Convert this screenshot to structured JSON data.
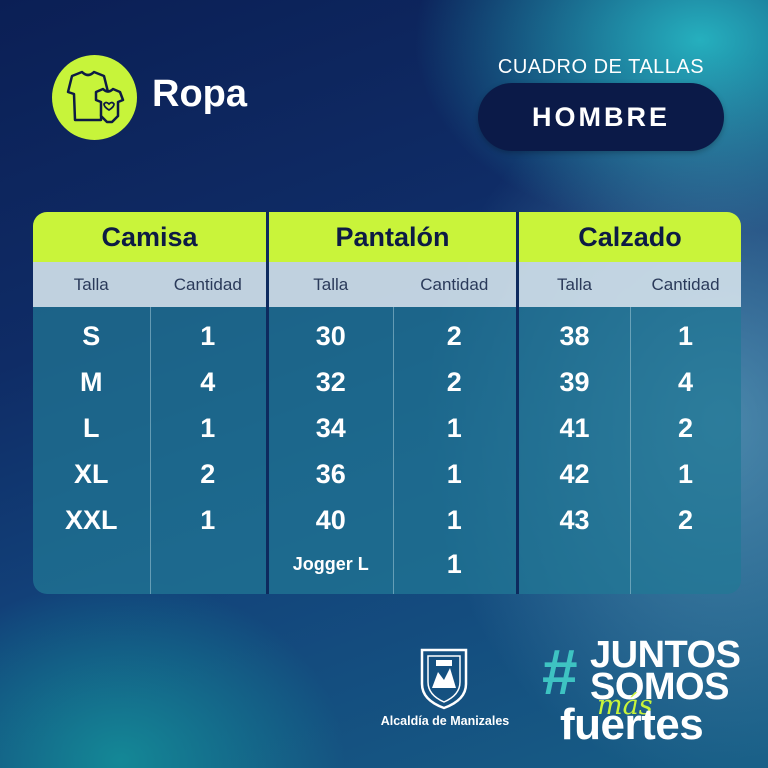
{
  "header": {
    "title": "Ropa",
    "subtitle": "CUADRO DE TALLAS",
    "gender": "HOMBRE"
  },
  "colors": {
    "accent": "#c9f43a",
    "dark_navy": "#0b1a48",
    "teal": "#3ec3c2"
  },
  "icons": [
    "clothing-icon",
    "city-crest-icon"
  ],
  "tables": [
    {
      "category": "Camisa",
      "col_size": "Talla",
      "col_qty": "Cantidad",
      "rows": [
        {
          "talla": "S",
          "cantidad": "1"
        },
        {
          "talla": "M",
          "cantidad": "4"
        },
        {
          "talla": "L",
          "cantidad": "1"
        },
        {
          "talla": "XL",
          "cantidad": "2"
        },
        {
          "talla": "XXL",
          "cantidad": "1"
        }
      ]
    },
    {
      "category": "Pantalón",
      "col_size": "Talla",
      "col_qty": "Cantidad",
      "rows": [
        {
          "talla": "30",
          "cantidad": "2"
        },
        {
          "talla": "32",
          "cantidad": "2"
        },
        {
          "talla": "34",
          "cantidad": "1"
        },
        {
          "talla": "36",
          "cantidad": "1"
        },
        {
          "talla": "40",
          "cantidad": "1"
        },
        {
          "talla": "Jogger L",
          "cantidad": "1"
        }
      ]
    },
    {
      "category": "Calzado",
      "col_size": "Talla",
      "col_qty": "Cantidad",
      "rows": [
        {
          "talla": "38",
          "cantidad": "1"
        },
        {
          "talla": "39",
          "cantidad": "4"
        },
        {
          "talla": "41",
          "cantidad": "2"
        },
        {
          "talla": "42",
          "cantidad": "1"
        },
        {
          "talla": "43",
          "cantidad": "2"
        }
      ]
    }
  ],
  "footer": {
    "org": "Alcaldía de Manizales",
    "slogan_hash": "#",
    "slogan_1": "JUNTOS",
    "slogan_2": "SOMOS",
    "slogan_3": "más",
    "slogan_4": "fuertes"
  }
}
